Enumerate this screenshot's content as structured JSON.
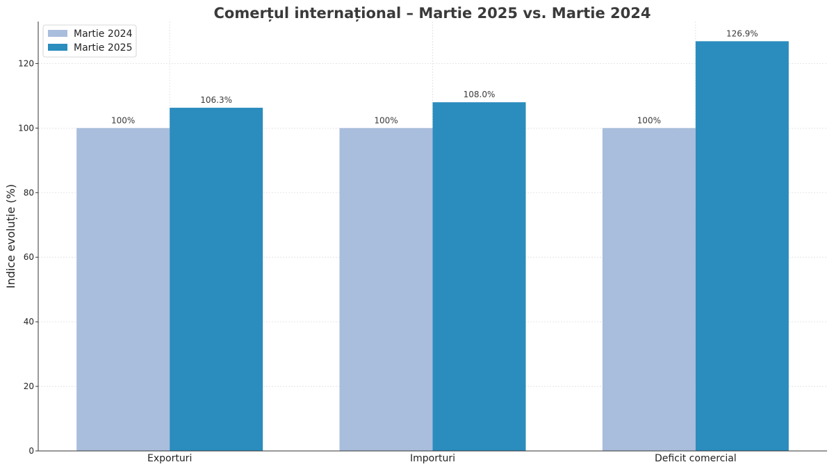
{
  "chart_data": {
    "type": "bar",
    "title": "Comerțul internațional – Martie 2025 vs. Martie 2024",
    "xlabel": "",
    "ylabel": "Indice evoluție (%)",
    "categories": [
      "Exporturi",
      "Importuri",
      "Deficit comercial"
    ],
    "series": [
      {
        "name": "Martie 2024",
        "color": "#a9bddc",
        "values": [
          100,
          100,
          100
        ],
        "labels": [
          "100%",
          "100%",
          "100%"
        ]
      },
      {
        "name": "Martie 2025",
        "color": "#2b8cbe",
        "values": [
          106.3,
          108.0,
          126.9
        ],
        "labels": [
          "106.3%",
          "108.0%",
          "126.9%"
        ]
      }
    ],
    "ylim": [
      0,
      133
    ],
    "yticks": [
      0,
      20,
      40,
      60,
      80,
      100,
      120
    ],
    "grid": true,
    "legend_position": "top-left"
  }
}
